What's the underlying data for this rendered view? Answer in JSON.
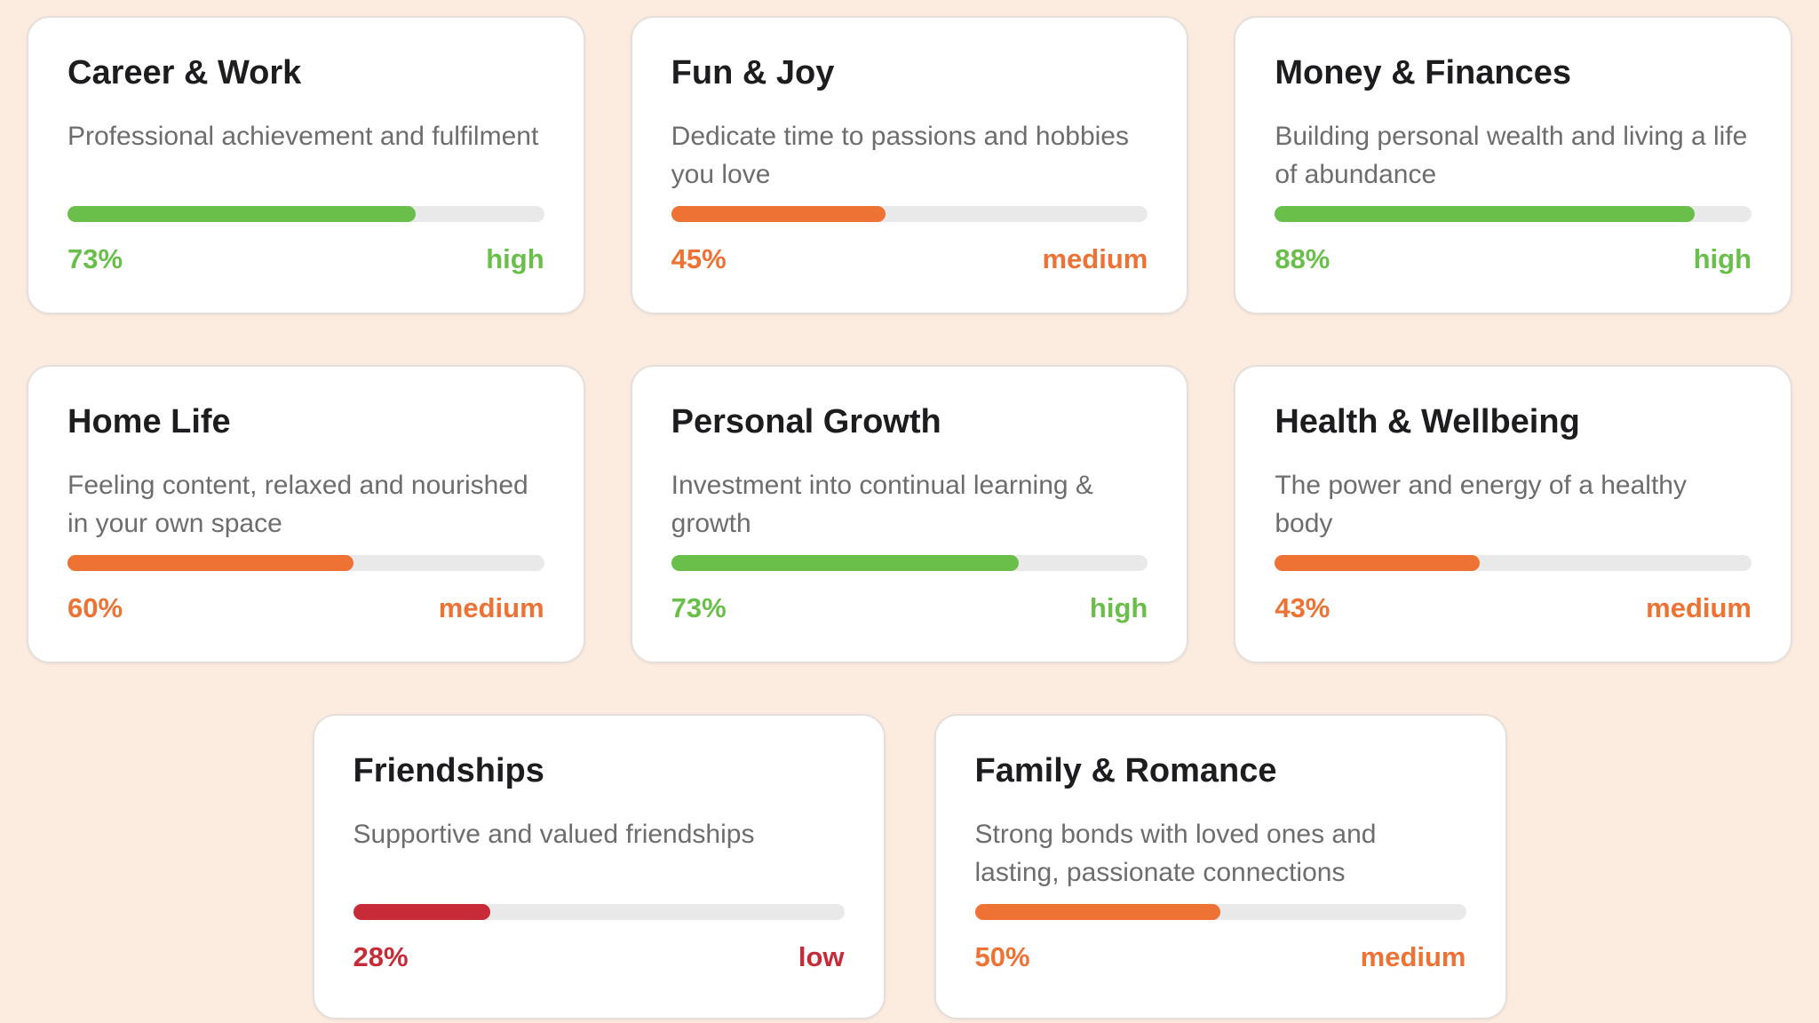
{
  "page": {
    "background_color": "#fcebdf",
    "card_background": "#ffffff",
    "track_color": "#e9e9e9",
    "title_color": "#1d1d1f",
    "description_color": "#6d6d6d"
  },
  "level_colors": {
    "high": "#6abf4b",
    "medium": "#ee7234",
    "low": "#c82b38"
  },
  "cards": [
    {
      "title": "Career & Work",
      "description": "Professional achievement and fulfilment",
      "percent": 73,
      "percent_label": "73%",
      "level": "high"
    },
    {
      "title": "Fun & Joy",
      "description": "Dedicate time to passions and hobbies you love",
      "percent": 45,
      "percent_label": "45%",
      "level": "medium"
    },
    {
      "title": "Money & Finances",
      "description": "Building personal wealth and living a life of abundance",
      "percent": 88,
      "percent_label": "88%",
      "level": "high"
    },
    {
      "title": "Home Life",
      "description": "Feeling content, relaxed and nourished in your own space",
      "percent": 60,
      "percent_label": "60%",
      "level": "medium"
    },
    {
      "title": "Personal Growth",
      "description": "Investment into continual learning & growth",
      "percent": 73,
      "percent_label": "73%",
      "level": "high"
    },
    {
      "title": "Health & Wellbeing",
      "description": "The power and energy of a healthy body",
      "percent": 43,
      "percent_label": "43%",
      "level": "medium"
    },
    {
      "title": "Friendships",
      "description": "Supportive and valued friendships",
      "percent": 28,
      "percent_label": "28%",
      "level": "low"
    },
    {
      "title": "Family & Romance",
      "description": "Strong bonds with loved ones and lasting, passionate connections",
      "percent": 50,
      "percent_label": "50%",
      "level": "medium"
    }
  ]
}
